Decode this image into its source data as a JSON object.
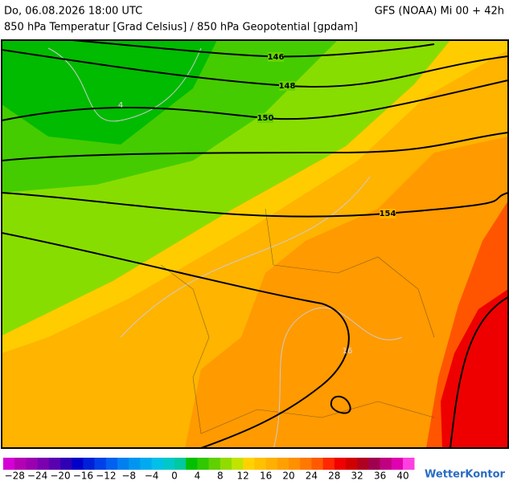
{
  "header": {
    "datetime": "Do, 06.08.2026 18:00 UTC",
    "model": "GFS (NOAA) Mi 00 + 42h",
    "subtitle": "850 hPa Temperatur [Grad Celsius] / 850 hPa Geopotential [gpdam]"
  },
  "contour_labels": [
    "146",
    "148",
    "150",
    "154"
  ],
  "isotherm_labels": [
    "4",
    "16"
  ],
  "colorbar": {
    "labels": [
      "−28",
      "−24",
      "−20",
      "−16",
      "−12",
      "−8",
      "−4",
      "0",
      "4",
      "8",
      "12",
      "16",
      "20",
      "24",
      "28",
      "32",
      "36",
      "40"
    ],
    "colors": [
      "#d400d4",
      "#b400b4",
      "#9a00b0",
      "#7a00b0",
      "#5a00b0",
      "#3000b4",
      "#0000c8",
      "#0020d8",
      "#0040e8",
      "#0060f0",
      "#0080f0",
      "#0096f0",
      "#00aaf0",
      "#00c0e8",
      "#00c8c8",
      "#00c8a0",
      "#00c000",
      "#30c800",
      "#60d000",
      "#90dc00",
      "#c0e400",
      "#ffd200",
      "#ffc000",
      "#ffb000",
      "#ffa000",
      "#ff9000",
      "#ff7800",
      "#ff5a00",
      "#ff2800",
      "#f00000",
      "#d00000",
      "#b00020",
      "#a00050",
      "#c00080",
      "#e000b0",
      "#ff40e0"
    ]
  },
  "logo": "WetterKontor"
}
